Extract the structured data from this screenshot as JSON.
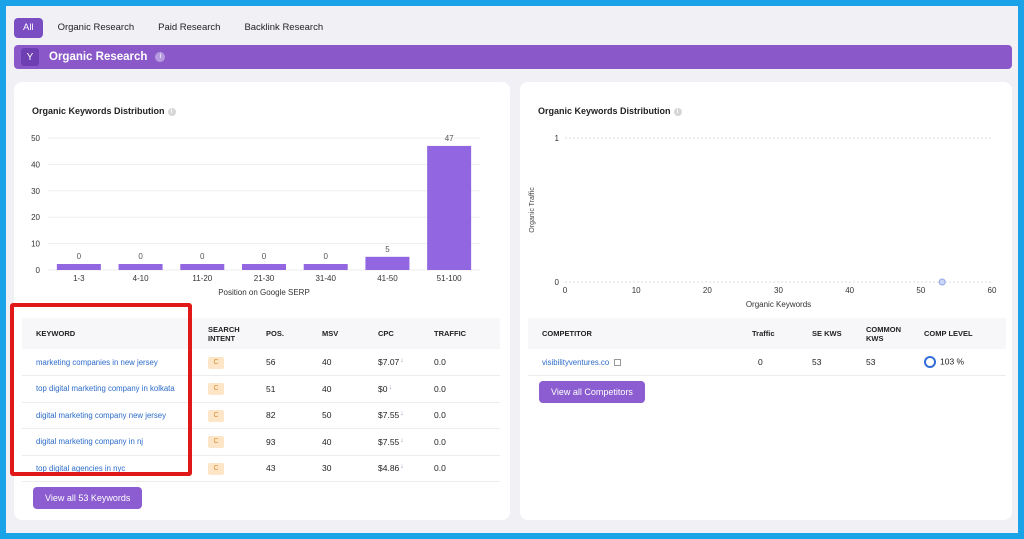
{
  "tabs": [
    "All",
    "Organic Research",
    "Paid Research",
    "Backlink Research"
  ],
  "banner": {
    "title": "Organic Research",
    "info": "i"
  },
  "left_card": {
    "title": "Organic Keywords Distribution",
    "info": "i",
    "chart_data": {
      "type": "bar",
      "categories": [
        "1-3",
        "4-10",
        "11-20",
        "21-30",
        "31-40",
        "41-50",
        "51-100"
      ],
      "values": [
        0,
        0,
        0,
        0,
        0,
        5,
        47
      ],
      "xlabel": "Position on Google SERP",
      "ylim": [
        0,
        50
      ],
      "yticks": [
        0,
        10,
        20,
        30,
        40,
        50
      ],
      "color": "#9166e0",
      "grid": true
    },
    "table": {
      "headers": [
        "KEYWORD",
        "SEARCH INTENT",
        "POS.",
        "MSV",
        "CPC",
        "TRAFFIC"
      ],
      "rows": [
        {
          "keyword": "marketing companies in new jersey",
          "intent": "C",
          "pos": "56",
          "msv": "40",
          "cpc": "$7.07",
          "traffic": "0.0"
        },
        {
          "keyword": "top digital marketing company in kolkata",
          "intent": "C",
          "pos": "51",
          "msv": "40",
          "cpc": "$0",
          "traffic": "0.0"
        },
        {
          "keyword": "digital marketing company new jersey",
          "intent": "C",
          "pos": "82",
          "msv": "50",
          "cpc": "$7.55",
          "traffic": "0.0"
        },
        {
          "keyword": "digital marketing company in nj",
          "intent": "C",
          "pos": "93",
          "msv": "40",
          "cpc": "$7.55",
          "traffic": "0.0"
        },
        {
          "keyword": "top digital agencies in nyc",
          "intent": "C",
          "pos": "43",
          "msv": "30",
          "cpc": "$4.86",
          "traffic": "0.0"
        }
      ]
    },
    "button": "View all 53 Keywords"
  },
  "right_card": {
    "title": "Organic Keywords Distribution",
    "info": "i",
    "chart_data": {
      "type": "scatter",
      "x": [
        53
      ],
      "y": [
        0
      ],
      "xlabel": "Organic Keywords",
      "ylabel": "Organic Traffic",
      "xlim": [
        0,
        60
      ],
      "ylim": [
        0,
        1
      ],
      "xticks": [
        0,
        10,
        20,
        30,
        40,
        50,
        60
      ],
      "yticks": [
        0,
        1
      ],
      "grid": true
    },
    "table": {
      "headers": [
        "COMPETITOR",
        "Traffic",
        "SE KWS",
        "COMMON KWS",
        "COMP LEVEL"
      ],
      "rows": [
        {
          "competitor": "visibilityventures.co",
          "traffic": "0",
          "se_kws": "53",
          "common_kws": "53",
          "comp_level": "103 %"
        }
      ]
    },
    "button": "View all Competitors"
  }
}
